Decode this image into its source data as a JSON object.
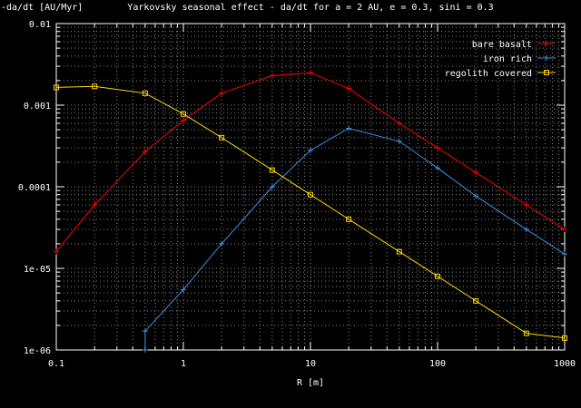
{
  "chart_data": {
    "type": "line",
    "title": "Yarkovsky seasonal effect - da/dt for a = 2 AU, e = 0.3, sini = 0.3",
    "ylabel": "-da/dt [AU/Myr]",
    "xlabel": "R [m]",
    "x_scale": "log",
    "y_scale": "log",
    "xlim": [
      0.1,
      1000
    ],
    "ylim": [
      1e-06,
      0.01
    ],
    "grid": true,
    "legend_position": "top-right",
    "x_ticks": [
      {
        "value": 0.1,
        "label": "0.1"
      },
      {
        "value": 1,
        "label": "1"
      },
      {
        "value": 10,
        "label": "10"
      },
      {
        "value": 100,
        "label": "100"
      },
      {
        "value": 1000,
        "label": "1000"
      }
    ],
    "y_ticks": [
      {
        "value": 0.01,
        "label": "0.01"
      },
      {
        "value": 0.001,
        "label": "0.001"
      },
      {
        "value": 0.0001,
        "label": "0.0001"
      },
      {
        "value": 1e-05,
        "label": "1e-05"
      },
      {
        "value": 1e-06,
        "label": "1e-06"
      }
    ],
    "series": [
      {
        "name": "bare basalt",
        "color": "#ff0000",
        "marker": "plus",
        "x": [
          0.1,
          0.2,
          0.5,
          1,
          2,
          5,
          10,
          20,
          50,
          100,
          200,
          500,
          1000
        ],
        "y": [
          1.6e-05,
          6e-05,
          0.00027,
          0.00065,
          0.0014,
          0.0023,
          0.0025,
          0.0016,
          0.0006,
          0.0003,
          0.00015,
          6e-05,
          3e-05
        ]
      },
      {
        "name": "iron rich",
        "color": "#3b8fe0",
        "marker": "plus",
        "x": [
          0.5,
          0.5,
          1,
          2,
          5,
          10,
          20,
          50,
          100,
          200,
          500,
          1000
        ],
        "y": [
          1e-06,
          1.7e-06,
          5.5e-06,
          2e-05,
          0.0001,
          0.00028,
          0.00052,
          0.00036,
          0.00017,
          7.7e-05,
          3e-05,
          1.5e-05
        ]
      },
      {
        "name": "regolith covered",
        "color": "#ffd700",
        "marker": "square",
        "x": [
          0.1,
          0.2,
          0.5,
          1,
          2,
          5,
          10,
          20,
          50,
          100,
          200,
          500,
          1000
        ],
        "y": [
          0.00165,
          0.0017,
          0.0014,
          0.00078,
          0.0004,
          0.00016,
          8e-05,
          4e-05,
          1.6e-05,
          8e-06,
          4e-06,
          1.6e-06,
          1.4e-06
        ]
      }
    ]
  }
}
